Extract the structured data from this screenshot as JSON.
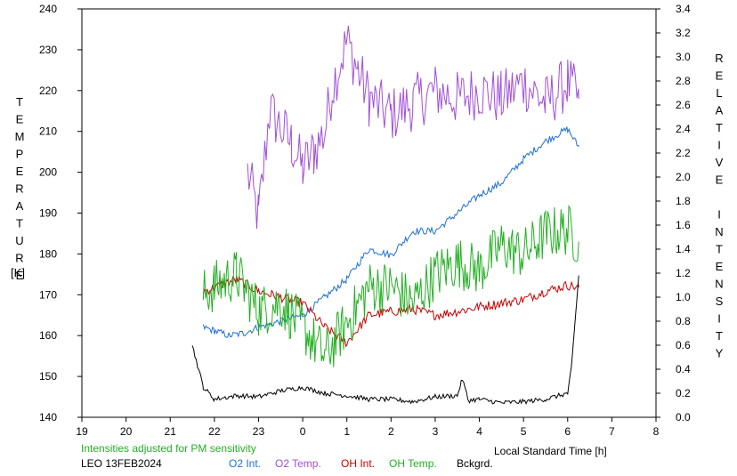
{
  "chart_data": {
    "type": "line",
    "left_axis_label": "TEMPERATURE",
    "left_axis_unit": "[K]",
    "right_axis_label": "RELATIVE INTENSITY",
    "xlabel": "Local Standard Time [h]",
    "note": "Intensities adjusted for PM sensitivity",
    "station": "LEO 13FEB2024",
    "x_tick_labels": [
      "19",
      "20",
      "21",
      "22",
      "23",
      "0",
      "1",
      "2",
      "3",
      "4",
      "5",
      "6",
      "7",
      "8"
    ],
    "x_range_hours_since_19": [
      0,
      13
    ],
    "y_left_range": [
      140,
      240
    ],
    "y_left_ticks": [
      "140",
      "150",
      "160",
      "170",
      "180",
      "190",
      "200",
      "210",
      "220",
      "230",
      "240"
    ],
    "y_right_range": [
      0,
      3.4
    ],
    "y_right_ticks": [
      "0.0",
      "0.2",
      "0.4",
      "0.6",
      "0.8",
      "1.0",
      "1.2",
      "1.4",
      "1.6",
      "1.8",
      "2.0",
      "2.2",
      "2.4",
      "2.6",
      "2.8",
      "3.0",
      "3.2",
      "3.4"
    ],
    "legend": [
      {
        "name": "O2 Int.",
        "color": "#1f6fd6"
      },
      {
        "name": "O2 Temp.",
        "color": "#a04fd8"
      },
      {
        "name": "OH Int.",
        "color": "#cc0000"
      },
      {
        "name": "OH Temp.",
        "color": "#22b022"
      },
      {
        "name": "Bckgrd.",
        "color": "#000000"
      }
    ],
    "series": [
      {
        "name": "O2 Temp.",
        "axis": "left",
        "color": "#a04fd8",
        "x": [
          "22:45",
          "23:00",
          "23:15",
          "23:45",
          "0:00",
          "0:15",
          "0:30",
          "0:40",
          "1:00",
          "1:15",
          "1:30",
          "2:00",
          "2:30",
          "3:00",
          "3:30",
          "4:00",
          "4:30",
          "5:00",
          "5:30",
          "6:00",
          "6:15"
        ],
        "y": [
          200,
          189,
          215,
          207,
          201,
          205,
          210,
          221,
          232,
          225,
          218,
          214,
          217,
          220,
          218,
          220,
          218,
          222,
          217,
          222,
          218
        ]
      },
      {
        "name": "O2 Int.",
        "axis": "right",
        "color": "#1f6fd6",
        "x": [
          "21:45",
          "22:00",
          "22:20",
          "22:40",
          "23:00",
          "23:30",
          "0:00",
          "0:30",
          "1:00",
          "1:30",
          "2:00",
          "2:30",
          "3:00",
          "3:30",
          "4:00",
          "4:30",
          "5:00",
          "5:30",
          "6:00",
          "6:15"
        ],
        "y": [
          0.75,
          0.72,
          0.68,
          0.7,
          0.75,
          0.8,
          0.85,
          1.0,
          1.15,
          1.4,
          1.35,
          1.55,
          1.55,
          1.7,
          1.85,
          1.95,
          2.15,
          2.3,
          2.4,
          2.25
        ]
      },
      {
        "name": "OH Int.",
        "axis": "right",
        "color": "#cc0000",
        "x": [
          "21:45",
          "22:00",
          "22:30",
          "23:00",
          "23:30",
          "0:00",
          "0:30",
          "1:00",
          "1:30",
          "2:00",
          "2:30",
          "3:00",
          "3:30",
          "4:00",
          "4:30",
          "5:00",
          "5:30",
          "6:00",
          "6:15"
        ],
        "y": [
          1.05,
          1.08,
          1.15,
          1.05,
          1.0,
          0.95,
          0.75,
          0.62,
          0.85,
          0.88,
          0.9,
          0.85,
          0.88,
          0.92,
          0.95,
          0.98,
          1.05,
          1.1,
          1.08
        ]
      },
      {
        "name": "OH Temp.",
        "axis": "left",
        "color": "#22b022",
        "x": [
          "21:45",
          "22:00",
          "22:30",
          "23:00",
          "23:30",
          "0:00",
          "0:30",
          "1:00",
          "1:30",
          "2:00",
          "2:30",
          "3:00",
          "3:30",
          "4:00",
          "4:30",
          "5:00",
          "5:30",
          "6:00",
          "6:15"
        ],
        "y": [
          170,
          172,
          175,
          166,
          168,
          162,
          155,
          163,
          172,
          172,
          168,
          175,
          178,
          176,
          182,
          180,
          185,
          186,
          183
        ]
      },
      {
        "name": "Bckgrd.",
        "axis": "right",
        "color": "#000000",
        "x": [
          "21:30",
          "21:45",
          "22:00",
          "22:30",
          "23:00",
          "23:30",
          "0:00",
          "0:30",
          "1:00",
          "1:30",
          "2:00",
          "2:30",
          "3:00",
          "3:30",
          "3:37",
          "3:45",
          "4:00",
          "4:30",
          "5:00",
          "5:30",
          "6:00",
          "6:05",
          "6:15"
        ],
        "y": [
          0.6,
          0.25,
          0.15,
          0.18,
          0.17,
          0.22,
          0.25,
          0.2,
          0.18,
          0.15,
          0.15,
          0.13,
          0.17,
          0.18,
          0.32,
          0.14,
          0.15,
          0.12,
          0.13,
          0.15,
          0.2,
          0.4,
          1.18
        ]
      }
    ]
  }
}
